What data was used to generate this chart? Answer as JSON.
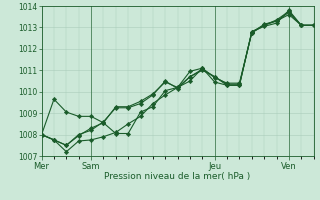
{
  "background_color": "#cce8d8",
  "grid_color": "#aaccbb",
  "line_color": "#1a5c2a",
  "marker_color": "#1a5c2a",
  "xlabel": "Pression niveau de la mer( hPa )",
  "ylim": [
    1007,
    1014
  ],
  "yticks": [
    1007,
    1008,
    1009,
    1010,
    1011,
    1012,
    1013,
    1014
  ],
  "xtick_positions": [
    0,
    4,
    14,
    20
  ],
  "xtick_labels": [
    "Mer",
    "Sam",
    "Jeu",
    "Ven"
  ],
  "vline_positions": [
    4,
    14,
    20
  ],
  "series": [
    [
      1008.0,
      1007.75,
      1007.2,
      1007.7,
      1007.75,
      1007.9,
      1008.1,
      1008.5,
      1008.85,
      1009.45,
      1009.85,
      1010.2,
      1010.5,
      1011.1,
      1010.45,
      1010.3,
      1010.3,
      1012.8,
      1013.05,
      1013.2,
      1013.8,
      1013.1,
      1013.1
    ],
    [
      1008.0,
      1009.65,
      1009.05,
      1008.85,
      1008.85,
      1008.55,
      1008.05,
      1008.05,
      1009.05,
      1009.3,
      1010.05,
      1010.2,
      1010.95,
      1011.1,
      1010.65,
      1010.4,
      1010.4,
      1012.75,
      1013.1,
      1013.3,
      1013.6,
      1013.1,
      1013.1
    ],
    [
      1008.0,
      1007.75,
      1007.5,
      1008.0,
      1008.2,
      1008.6,
      1009.25,
      1009.25,
      1009.45,
      1009.85,
      1010.5,
      1010.15,
      1010.7,
      1011.05,
      1010.7,
      1010.3,
      1010.3,
      1012.8,
      1013.1,
      1013.35,
      1013.75,
      1013.1,
      1013.1
    ],
    [
      1008.0,
      1007.75,
      1007.5,
      1007.95,
      1008.3,
      1008.55,
      1009.3,
      1009.3,
      1009.55,
      1009.9,
      1010.45,
      1010.2,
      1010.7,
      1011.0,
      1010.7,
      1010.35,
      1010.35,
      1012.75,
      1013.15,
      1013.3,
      1013.7,
      1013.1,
      1013.1
    ]
  ],
  "n_points": 23,
  "xlim": [
    0,
    22
  ]
}
